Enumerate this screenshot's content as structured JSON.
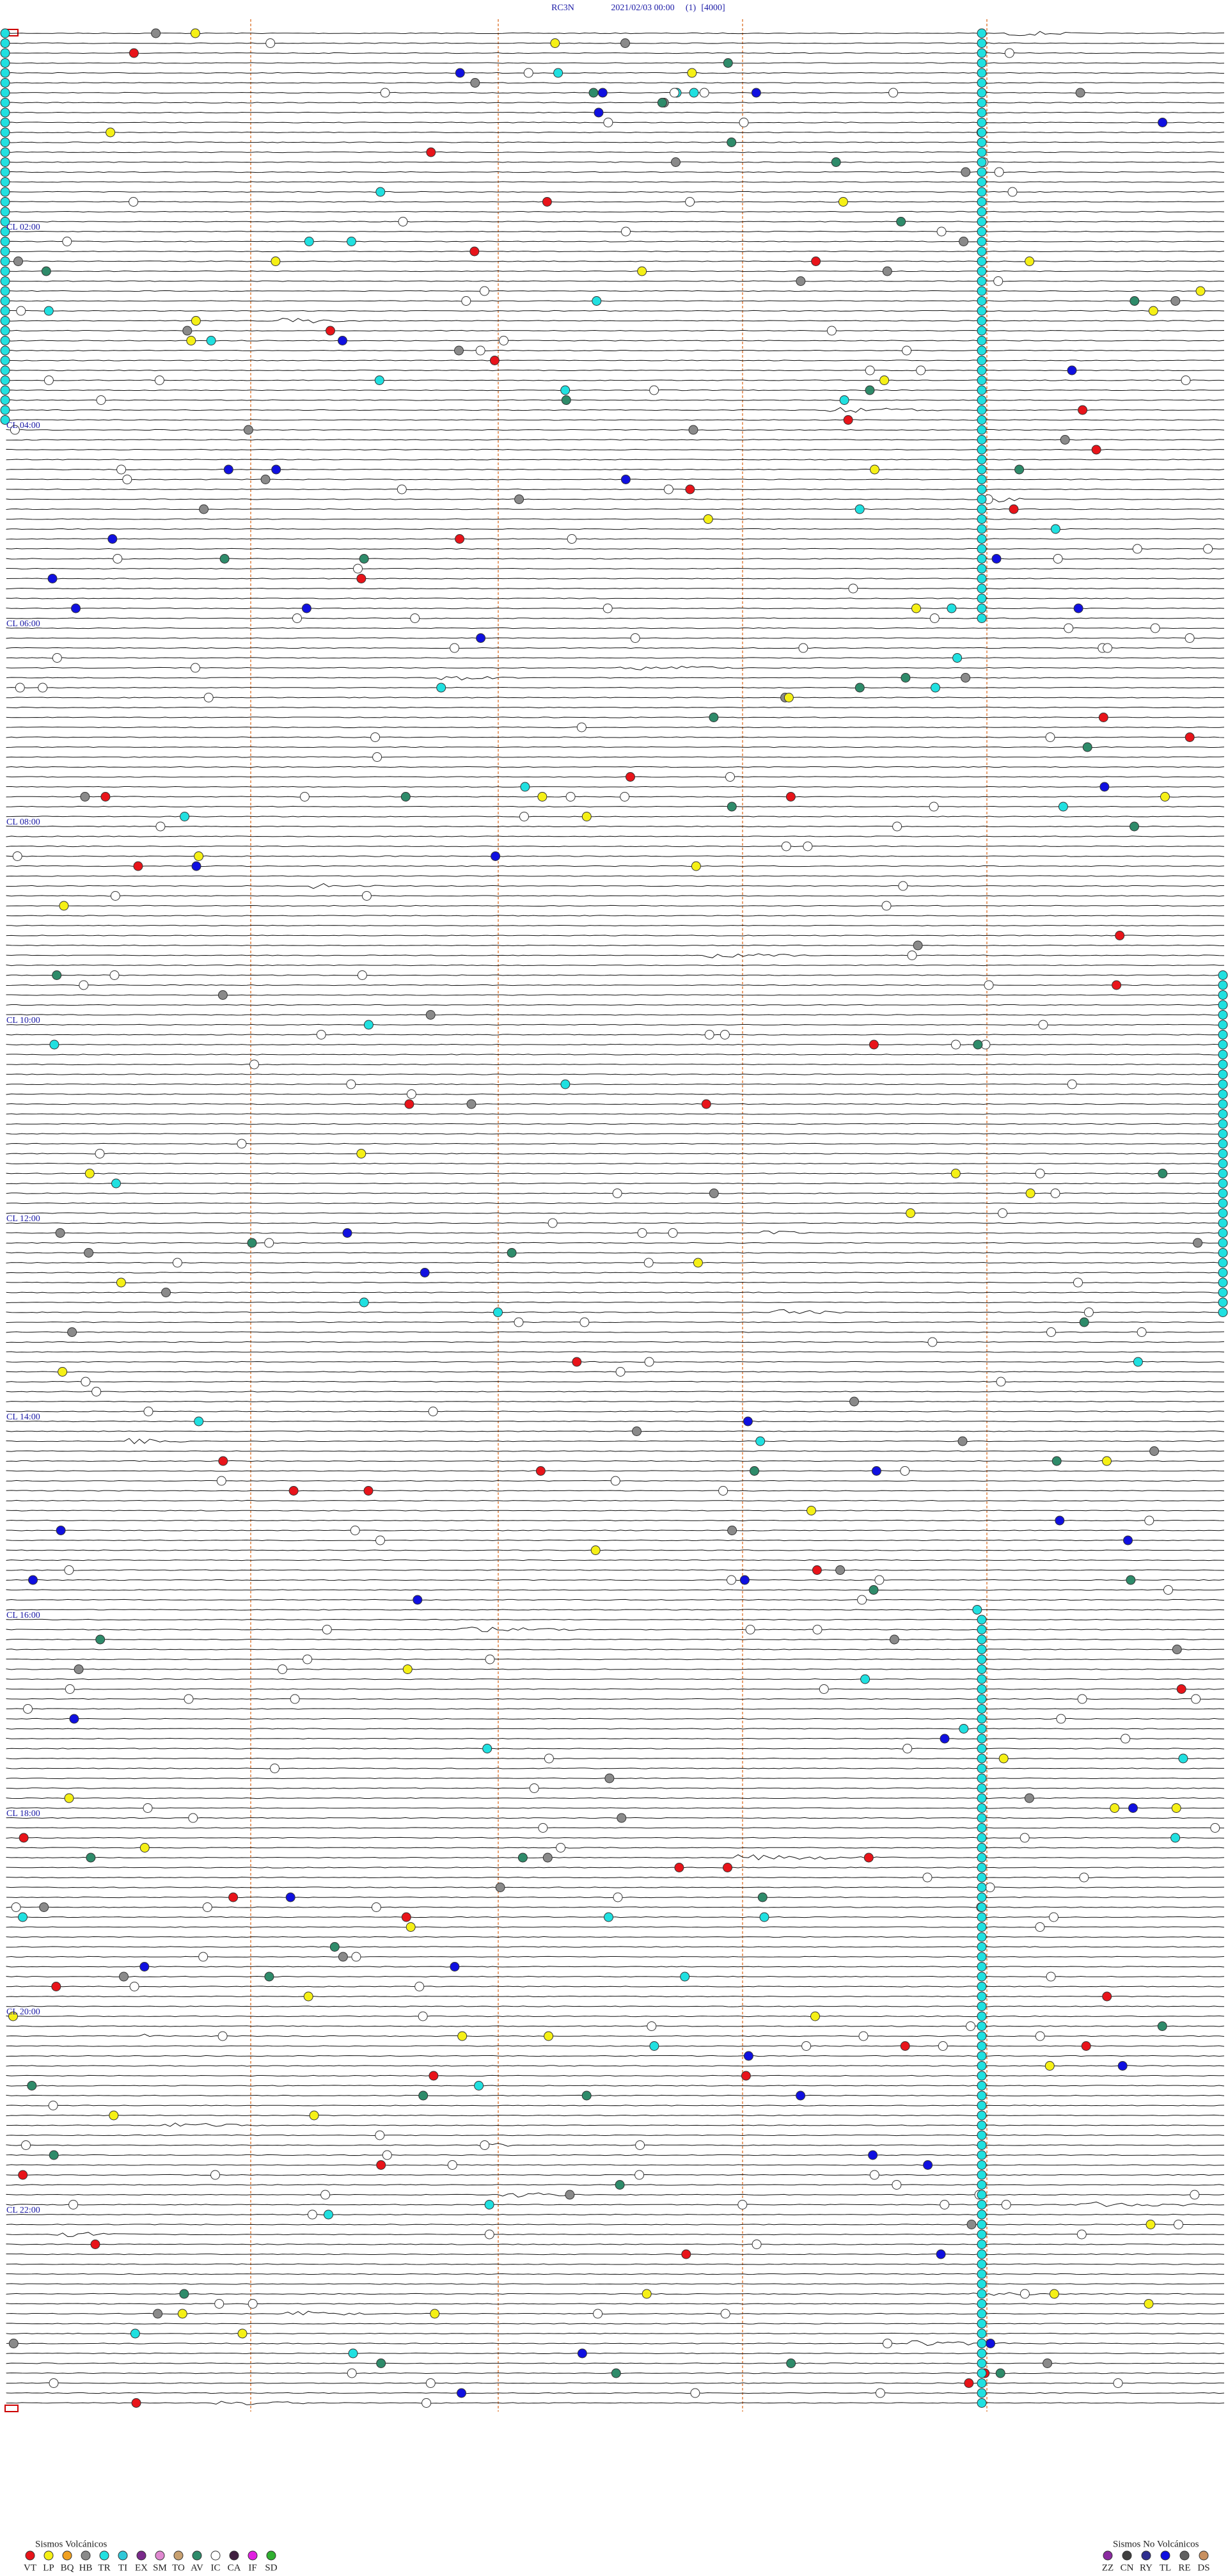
{
  "header": {
    "station": "RC3N",
    "datetime": "2021/02/03 00:00",
    "channel": "(1)",
    "scale": "[4000]"
  },
  "hour_labels": [
    "CL  02:00",
    "CL  04:00",
    "CL  06:00",
    "CL  08:00",
    "CL  10:00",
    "CL  12:00",
    "CL  14:00",
    "CL  16:00",
    "CL  18:00",
    "CL  20:00",
    "CL  22:00"
  ],
  "legend_volcanic": {
    "title": "Sismos Volcánicos",
    "items": [
      {
        "label": "VT",
        "color": "#e8141a"
      },
      {
        "label": "LP",
        "color": "#f5f016"
      },
      {
        "label": "BQ",
        "color": "#f0a020"
      },
      {
        "label": "HB",
        "color": "#8a8a8a"
      },
      {
        "label": "TR",
        "color": "#20e0e0"
      },
      {
        "label": "TI",
        "color": "#30c8d8"
      },
      {
        "label": "EX",
        "color": "#7a2a8a"
      },
      {
        "label": "SM",
        "color": "#e088d0"
      },
      {
        "label": "TO",
        "color": "#c8a070"
      },
      {
        "label": "AV",
        "color": "#2e8b6a"
      },
      {
        "label": "IC",
        "color": "#ffffff"
      },
      {
        "label": "CA",
        "color": "#402040"
      },
      {
        "label": "IF",
        "color": "#e020e0"
      },
      {
        "label": "SD",
        "color": "#30b030"
      }
    ]
  },
  "legend_non_volcanic": {
    "title": "Sismos No Volcánicos",
    "items": [
      {
        "label": "ZZ",
        "color": "#8a2aa0"
      },
      {
        "label": "CN",
        "color": "#404040"
      },
      {
        "label": "RY",
        "color": "#303090"
      },
      {
        "label": "TL",
        "color": "#1010e0"
      },
      {
        "label": "RE",
        "color": "#606060"
      },
      {
        "label": "DS",
        "color": "#c89060"
      }
    ]
  }
}
